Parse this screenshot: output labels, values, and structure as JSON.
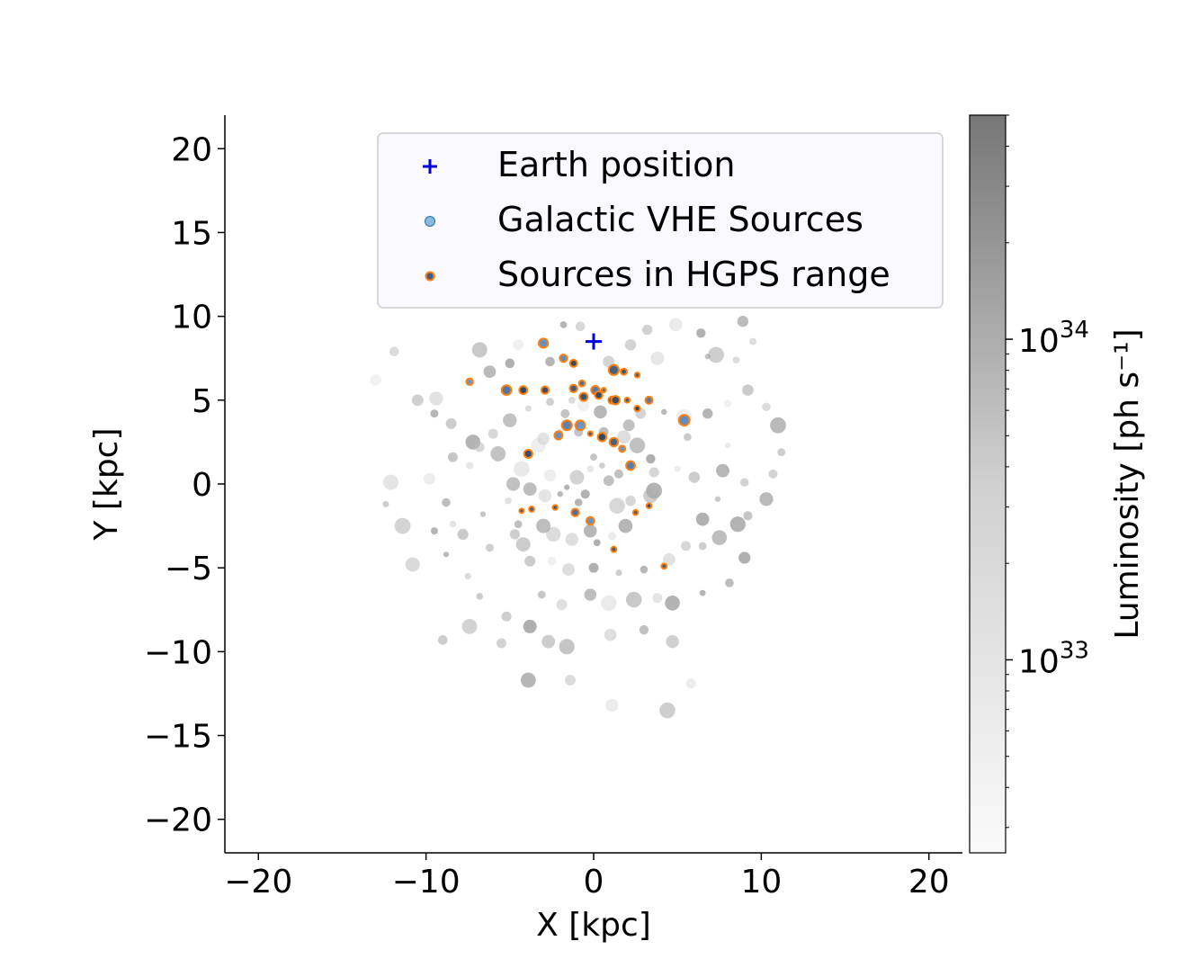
{
  "chart_data": {
    "type": "scatter",
    "title": "",
    "xlabel": "X [kpc]",
    "ylabel": "Y [kpc]",
    "xlim": [
      -22,
      22
    ],
    "ylim": [
      -22,
      22
    ],
    "x_ticks": [
      -20,
      -10,
      0,
      10,
      20
    ],
    "y_ticks": [
      20,
      15,
      10,
      5,
      0,
      -5,
      -10,
      -15,
      -20
    ],
    "x_tick_labels": [
      "−20",
      "−10",
      "0",
      "10",
      "20"
    ],
    "y_tick_labels": [
      "20",
      "15",
      "10",
      "5",
      "0",
      "−5",
      "−10",
      "−15",
      "−20"
    ],
    "legend": {
      "placement": "upper-center",
      "entries": [
        "Earth position",
        "Galactic VHE Sources",
        "Sources in HGPS range"
      ]
    },
    "colorbar": {
      "label": "Luminosity [ph s⁻¹]",
      "scale": "log",
      "range": [
        2.5e+32,
        5e+34
      ],
      "ticks": [
        {
          "value": 1e+33,
          "base": "10",
          "exp": "33"
        },
        {
          "value": 1e+34,
          "base": "10",
          "exp": "34"
        }
      ],
      "colormap": "Greys"
    },
    "colors": {
      "earth": "#0000dd",
      "vhe_source": "#1f77b4",
      "hgps_edge": "#ff7f0e",
      "legend_bg": "#f8f8ff"
    },
    "series": [
      {
        "name": "Earth position",
        "marker": "plus",
        "points": [
          [
            0,
            8.5
          ]
        ]
      },
      {
        "name": "Sources in HGPS range",
        "marker": "circle-orange-edge",
        "points": [
          [
            -3,
            8.4
          ],
          [
            -1.8,
            7.5
          ],
          [
            -1.2,
            7.2
          ],
          [
            1.2,
            6.8
          ],
          [
            1.8,
            6.7
          ],
          [
            2.6,
            6.5
          ],
          [
            -7.4,
            6.1
          ],
          [
            -5.2,
            5.6
          ],
          [
            -4.2,
            5.6
          ],
          [
            -2.9,
            5.6
          ],
          [
            -1.2,
            5.7
          ],
          [
            -0.7,
            6.0
          ],
          [
            -0.6,
            5.2
          ],
          [
            0.1,
            5.6
          ],
          [
            0.3,
            5.3
          ],
          [
            0.6,
            5.6
          ],
          [
            1.1,
            5.0
          ],
          [
            1.3,
            5.0
          ],
          [
            2.0,
            5.0
          ],
          [
            3.3,
            5.0
          ],
          [
            5.4,
            3.8
          ],
          [
            2.6,
            4.5
          ],
          [
            -0.8,
            3.5
          ],
          [
            -1.6,
            3.5
          ],
          [
            -2.1,
            2.9
          ],
          [
            -0.2,
            3.0
          ],
          [
            0.5,
            2.8
          ],
          [
            1.2,
            2.5
          ],
          [
            1.7,
            2.1
          ],
          [
            -3.9,
            1.8
          ],
          [
            2.2,
            1.1
          ],
          [
            -4.3,
            -1.6
          ],
          [
            -3.7,
            -1.5
          ],
          [
            -2.3,
            -1.4
          ],
          [
            -1.1,
            -1.7
          ],
          [
            -0.2,
            -2.2
          ],
          [
            2.5,
            -1.7
          ],
          [
            3.3,
            -1.3
          ],
          [
            1.2,
            -3.9
          ],
          [
            4.2,
            -4.9
          ]
        ]
      },
      {
        "name": "Galactic VHE Sources",
        "marker": "circle-grey",
        "points": [
          [
            -10.5,
            5.0
          ],
          [
            -9.5,
            4.2
          ],
          [
            -8.5,
            3.6
          ],
          [
            -7.2,
            2.5
          ],
          [
            -6.0,
            3.0
          ],
          [
            -5.0,
            3.8
          ],
          [
            -3.9,
            4.5
          ],
          [
            -2.6,
            4.9
          ],
          [
            -1.3,
            5.0
          ],
          [
            2.8,
            4.2
          ],
          [
            4.2,
            4.3
          ],
          [
            5.4,
            4.0
          ],
          [
            6.8,
            4.2
          ],
          [
            8.0,
            4.8
          ],
          [
            9.2,
            5.6
          ],
          [
            10.3,
            4.6
          ],
          [
            11.0,
            3.5
          ],
          [
            11.2,
            1.9
          ],
          [
            10.7,
            0.6
          ],
          [
            10.3,
            -0.9
          ],
          [
            9.2,
            -1.9
          ],
          [
            8.6,
            -2.4
          ],
          [
            7.5,
            -3.2
          ],
          [
            6.5,
            -3.7
          ],
          [
            5.5,
            -3.7
          ],
          [
            4.5,
            -4.5
          ],
          [
            3.0,
            -5.1
          ],
          [
            1.5,
            -5.3
          ],
          [
            0.0,
            -5.0
          ],
          [
            -1.5,
            -5.1
          ],
          [
            -2.5,
            -4.6
          ],
          [
            -3.8,
            -4.6
          ],
          [
            -4.2,
            -3.6
          ],
          [
            -4.7,
            -3.0
          ],
          [
            -4.5,
            -2.4
          ],
          [
            -5.1,
            -1.0
          ],
          [
            -4.8,
            0.0
          ],
          [
            -4.3,
            0.9
          ],
          [
            -3.3,
            2.3
          ],
          [
            -3.0,
            2.7
          ],
          [
            -2.0,
            3.1
          ],
          [
            -0.9,
            3.1
          ],
          [
            0.6,
            3.1
          ],
          [
            1.8,
            2.8
          ],
          [
            2.6,
            2.3
          ],
          [
            3.4,
            1.5
          ],
          [
            3.6,
            0.7
          ],
          [
            3.6,
            -0.4
          ],
          [
            3.4,
            -0.7
          ],
          [
            2.2,
            -1.0
          ],
          [
            1.9,
            -2.5
          ],
          [
            1.1,
            -3.1
          ],
          [
            0.2,
            -3.5
          ],
          [
            -1.3,
            -3.3
          ],
          [
            -2.4,
            -3.0
          ],
          [
            -3.0,
            -2.5
          ],
          [
            -2.0,
            -0.6
          ],
          [
            -1.6,
            -0.2
          ],
          [
            -1.0,
            0.4
          ],
          [
            -0.2,
            0.9
          ],
          [
            0.5,
            1.1
          ],
          [
            0.9,
            0.2
          ],
          [
            -0.5,
            -0.6
          ],
          [
            -8.8,
            -1.1
          ],
          [
            -8.4,
            -2.4
          ],
          [
            -8.8,
            -4.2
          ],
          [
            -7.5,
            -5.5
          ],
          [
            -6.8,
            -6.7
          ],
          [
            -5.2,
            -7.9
          ],
          [
            -3.8,
            -8.5
          ],
          [
            -2.7,
            -9.4
          ],
          [
            -1.6,
            -9.7
          ],
          [
            1.0,
            -9.0
          ],
          [
            3.0,
            -8.7
          ],
          [
            4.7,
            -7.1
          ],
          [
            6.5,
            -6.5
          ],
          [
            8.1,
            -5.9
          ],
          [
            9.0,
            -4.4
          ],
          [
            -9.0,
            -9.3
          ],
          [
            -7.4,
            -8.5
          ],
          [
            -5.5,
            -9.5
          ],
          [
            -3.9,
            -11.7
          ],
          [
            -1.4,
            -11.7
          ],
          [
            1.1,
            -13.2
          ],
          [
            4.4,
            -13.5
          ],
          [
            5.8,
            -11.9
          ],
          [
            4.7,
            -9.4
          ],
          [
            -12.1,
            0.1
          ],
          [
            -11.4,
            -2.5
          ],
          [
            -10.8,
            -4.8
          ],
          [
            -12.4,
            -1.2
          ],
          [
            -13.0,
            6.2
          ],
          [
            -11.9,
            7.9
          ],
          [
            -9.4,
            5.1
          ],
          [
            3.2,
            9.2
          ],
          [
            4.9,
            9.5
          ],
          [
            6.4,
            9.0
          ],
          [
            7.3,
            7.7
          ],
          [
            8.5,
            7.4
          ],
          [
            9.5,
            8.5
          ],
          [
            8.9,
            9.7
          ],
          [
            6.8,
            7.6
          ],
          [
            -4.5,
            8.3
          ],
          [
            -5.0,
            7.2
          ],
          [
            -6.2,
            6.7
          ],
          [
            -3.8,
            -0.3
          ],
          [
            -5.7,
            1.8
          ],
          [
            -6.8,
            2.2
          ],
          [
            -7.4,
            1.1
          ],
          [
            -8.4,
            1.6
          ],
          [
            -9.8,
            0.3
          ],
          [
            -9.5,
            -2.8
          ],
          [
            -6.2,
            -3.8
          ],
          [
            -7.8,
            -3.0
          ],
          [
            -6.6,
            -1.8
          ],
          [
            6.5,
            -2.1
          ],
          [
            6.0,
            0.4
          ],
          [
            5.0,
            0.9
          ],
          [
            5.6,
            2.8
          ],
          [
            7.4,
            -0.9
          ],
          [
            7.7,
            0.8
          ],
          [
            8.0,
            2.3
          ],
          [
            9.0,
            0.1
          ],
          [
            -3.1,
            -6.6
          ],
          [
            -1.9,
            -7.2
          ],
          [
            -0.2,
            -6.6
          ],
          [
            0.9,
            -7.1
          ],
          [
            2.4,
            -6.9
          ],
          [
            3.8,
            -6.8
          ],
          [
            -0.9,
            -1.1
          ],
          [
            -0.2,
            -2.8
          ],
          [
            1.4,
            -1.3
          ],
          [
            1.5,
            0.6
          ],
          [
            0.0,
            1.6
          ],
          [
            -2.6,
            0.5
          ],
          [
            -2.9,
            -0.7
          ],
          [
            2.1,
            3.5
          ],
          [
            0.4,
            4.3
          ],
          [
            -0.6,
            4.7
          ],
          [
            -1.7,
            4.2
          ],
          [
            0.9,
            7.3
          ],
          [
            -2.6,
            7.3
          ],
          [
            3.8,
            7.5
          ],
          [
            2.2,
            8.3
          ],
          [
            -0.8,
            9.4
          ],
          [
            -1.8,
            9.5
          ],
          [
            -6.8,
            8.0
          ]
        ]
      }
    ]
  }
}
